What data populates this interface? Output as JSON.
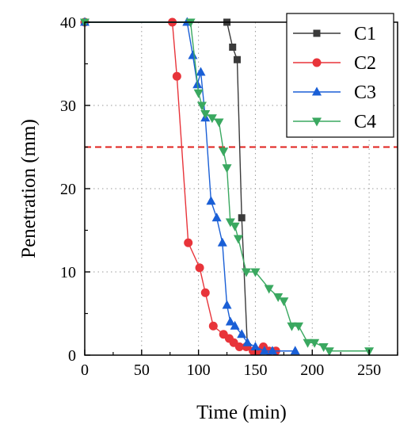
{
  "chart_data": {
    "type": "line",
    "xlabel": "Time (min)",
    "ylabel": "Penetration (mm)",
    "xlim": [
      0,
      275
    ],
    "ylim": [
      0,
      40
    ],
    "xticks": [
      0,
      50,
      100,
      150,
      200,
      250
    ],
    "yticks": [
      0,
      10,
      20,
      30,
      40
    ],
    "grid": true,
    "legend": "top-right",
    "reference_line": {
      "y": 25,
      "color": "#e0201c",
      "style": "dashed"
    },
    "series": [
      {
        "name": "C1",
        "color": "#3a3a3a",
        "marker": "square",
        "x": [
          0,
          125,
          130,
          134,
          138,
          143,
          152
        ],
        "y": [
          40,
          40,
          37,
          35.5,
          16.5,
          1,
          0.5
        ]
      },
      {
        "name": "C2",
        "color": "#e8343a",
        "marker": "circle",
        "x": [
          0,
          77,
          81,
          91,
          101,
          106,
          113,
          122,
          127,
          131,
          136,
          142,
          148,
          152,
          157,
          162,
          168
        ],
        "y": [
          40,
          40,
          33.5,
          13.5,
          10.5,
          7.5,
          3.5,
          2.5,
          2,
          1.5,
          1,
          1,
          0.5,
          0.5,
          1,
          0.5,
          0.5
        ]
      },
      {
        "name": "C3",
        "color": "#1a5fd6",
        "marker": "triangle-up",
        "x": [
          0,
          90,
          95,
          99,
          102,
          106,
          111,
          116,
          121,
          125,
          128,
          132,
          138,
          143,
          150,
          158,
          165,
          185
        ],
        "y": [
          40,
          40,
          36,
          32.5,
          34,
          28.5,
          18.5,
          16.5,
          13.5,
          6,
          4,
          3.5,
          2.5,
          1.5,
          1,
          0.5,
          0.5,
          0.5
        ]
      },
      {
        "name": "C4",
        "color": "#3aa860",
        "marker": "triangle-down",
        "x": [
          0,
          93,
          100,
          103,
          106,
          112,
          118,
          122,
          125,
          128,
          132,
          135,
          142,
          150,
          162,
          170,
          175,
          182,
          188,
          196,
          202,
          210,
          215,
          250
        ],
        "y": [
          40,
          40,
          31.5,
          30,
          29,
          28.5,
          28,
          24.5,
          22.5,
          16,
          15.5,
          14,
          10,
          10,
          8,
          7,
          6.5,
          3.5,
          3.5,
          1.5,
          1.5,
          1,
          0.5,
          0.5
        ]
      }
    ]
  }
}
